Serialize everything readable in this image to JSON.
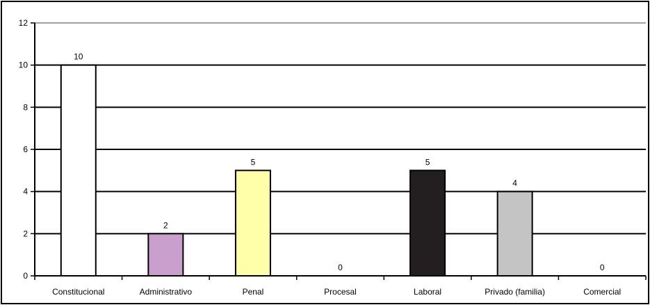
{
  "chart_data": {
    "type": "bar",
    "title": "",
    "xlabel": "",
    "ylabel": "",
    "ylim": [
      0,
      12
    ],
    "yticks": [
      0,
      2,
      4,
      6,
      8,
      10,
      12
    ],
    "grid": true,
    "categories": [
      "Constitucional",
      "Administrativo",
      "Penal",
      "Procesal",
      "Laboral",
      "Privado (familia)",
      "Comercial"
    ],
    "values": [
      10,
      2,
      5,
      0,
      5,
      4,
      0
    ],
    "value_labels": [
      "10",
      "2",
      "5",
      "0",
      "5",
      "4",
      "0"
    ],
    "colors": [
      "#ffffff",
      "#c9a0cd",
      "#ffffaa",
      "#ffffff",
      "#231f20",
      "#c4c4c4",
      "#ffffff"
    ]
  }
}
